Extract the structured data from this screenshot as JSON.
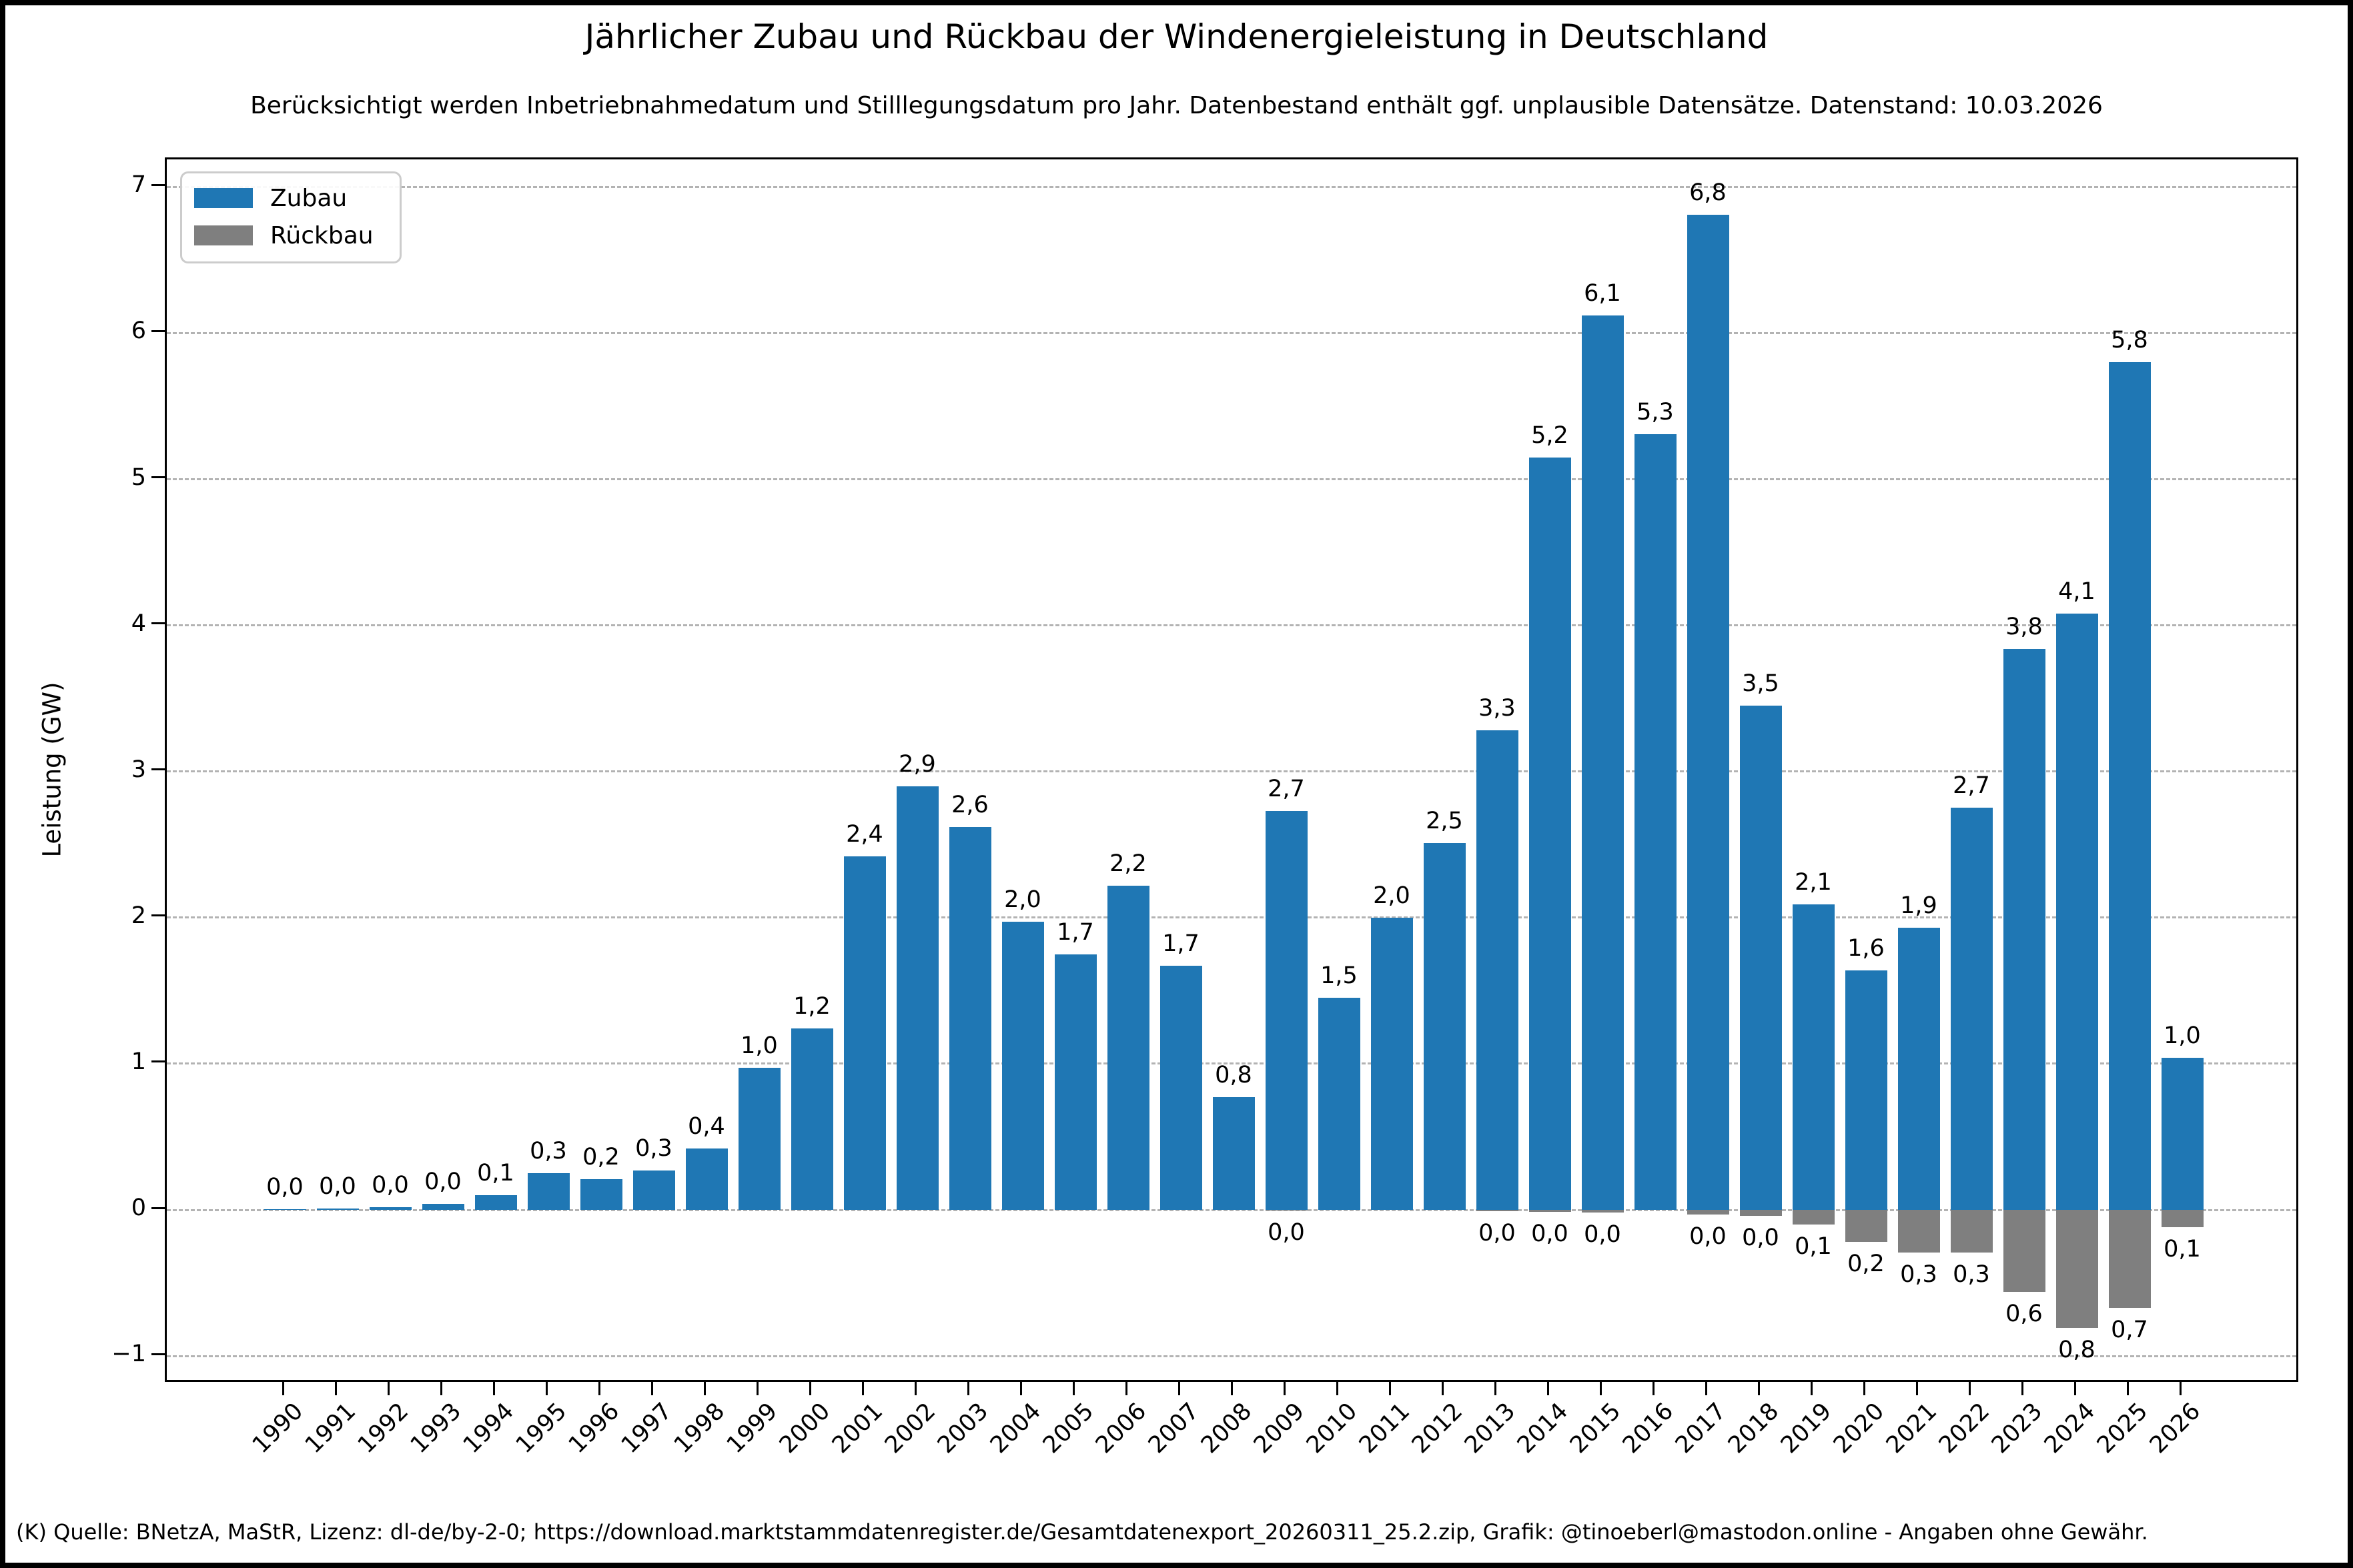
{
  "header": {
    "title": "Jährlicher Zubau und Rückbau der Windenergieleistung in Deutschland",
    "subtitle": "Berücksichtigt werden Inbetriebnahmedatum und Stilllegungsdatum pro Jahr. Datenbestand enthält ggf. unplausible Datensätze. Datenstand: 10.03.2026"
  },
  "footer": {
    "source_text": "(K) Quelle: BNetzA, MaStR, Lizenz: dl-de/by-2-0; https://download.marktstammdatenregister.de/Gesamtdatenexport_20260311_25.2.zip, Grafik: @tinoeberl@mastodon.online - Angaben ohne Gewähr."
  },
  "chart_data": {
    "type": "bar",
    "title": "Jährlicher Zubau und Rückbau der Windenergieleistung in Deutschland",
    "subtitle": "Berücksichtigt werden Inbetriebnahmedatum und Stilllegungsdatum pro Jahr. Datenbestand enthält ggf. unplausible Datensätze. Datenstand: 10.03.2026",
    "xlabel": "",
    "ylabel": "Leistung (GW)",
    "ylim": [
      -1.19,
      7.19
    ],
    "yticks": [
      -1,
      0,
      1,
      2,
      3,
      4,
      5,
      6,
      7
    ],
    "ytick_labels": [
      "−1",
      "0",
      "1",
      "2",
      "3",
      "4",
      "5",
      "6",
      "7"
    ],
    "grid": "horizontal-dashed",
    "legend_position": "upper-left",
    "categories": [
      "1990",
      "1991",
      "1992",
      "1993",
      "1994",
      "1995",
      "1996",
      "1997",
      "1998",
      "1999",
      "2000",
      "2001",
      "2002",
      "2003",
      "2004",
      "2005",
      "2006",
      "2007",
      "2008",
      "2009",
      "2010",
      "2011",
      "2012",
      "2013",
      "2014",
      "2015",
      "2016",
      "2017",
      "2018",
      "2019",
      "2020",
      "2021",
      "2022",
      "2023",
      "2024",
      "2025",
      "2026"
    ],
    "series": [
      {
        "name": "Zubau",
        "color": "#1f77b4",
        "direction": "positive",
        "values": [
          0.003,
          0.01,
          0.02,
          0.04,
          0.1,
          0.25,
          0.21,
          0.27,
          0.42,
          0.97,
          1.24,
          2.42,
          2.9,
          2.62,
          1.97,
          1.75,
          2.22,
          1.67,
          0.77,
          2.73,
          1.45,
          2.0,
          2.51,
          3.28,
          5.15,
          6.12,
          5.31,
          6.81,
          3.45,
          2.09,
          1.64,
          1.93,
          2.75,
          3.84,
          4.08,
          5.8,
          1.04
        ],
        "labels": [
          "0,0",
          "0,0",
          "0,0",
          "0,0",
          "0,1",
          "0,3",
          "0,2",
          "0,3",
          "0,4",
          "1,0",
          "1,2",
          "2,4",
          "2,9",
          "2,6",
          "2,0",
          "1,7",
          "2,2",
          "1,7",
          "0,8",
          "2,7",
          "1,5",
          "2,0",
          "2,5",
          "3,3",
          "5,2",
          "6,1",
          "5,3",
          "6,8",
          "3,5",
          "2,1",
          "1,6",
          "1,9",
          "2,7",
          "3,8",
          "4,1",
          "5,8",
          "1,0"
        ]
      },
      {
        "name": "Rückbau",
        "color": "#7f7f7f",
        "direction": "negative",
        "values": [
          null,
          null,
          null,
          null,
          null,
          null,
          null,
          null,
          null,
          null,
          null,
          null,
          null,
          null,
          null,
          null,
          null,
          null,
          null,
          0.005,
          null,
          null,
          null,
          0.01,
          0.015,
          0.02,
          null,
          0.03,
          0.04,
          0.1,
          0.22,
          0.29,
          0.29,
          0.56,
          0.81,
          0.67,
          0.12
        ],
        "labels": [
          null,
          null,
          null,
          null,
          null,
          null,
          null,
          null,
          null,
          null,
          null,
          null,
          null,
          null,
          null,
          null,
          null,
          null,
          null,
          "0,0",
          null,
          null,
          null,
          "0,0",
          "0,0",
          "0,0",
          null,
          "0,0",
          "0,0",
          "0,1",
          "0,2",
          "0,3",
          "0,3",
          "0,6",
          "0,8",
          "0,7",
          "0,1"
        ]
      }
    ]
  }
}
